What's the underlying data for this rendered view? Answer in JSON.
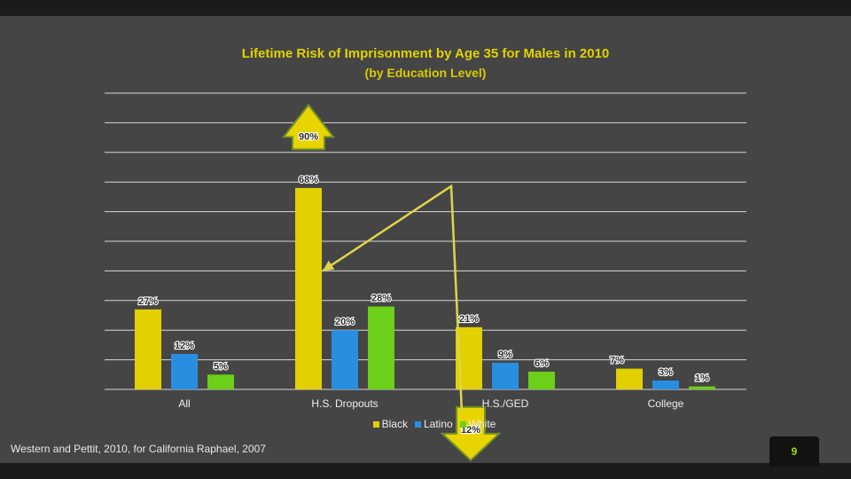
{
  "slide": {
    "title_line1": "Lifetime Risk of Imprisonment by Age 35 for Males in 2010",
    "title_line2": "(by Education Level)",
    "source": "Western and Pettit, 2010, for California Raphael, 2007",
    "page_number": "9"
  },
  "chart_data": {
    "type": "bar",
    "title": "Lifetime Risk of Imprisonment by Age 35 for Males in 2010 (by Education Level)",
    "xlabel": "",
    "ylabel": "",
    "ylim": [
      0,
      100
    ],
    "grid": true,
    "legend_position": "bottom",
    "categories": [
      "All",
      "H.S. Dropouts",
      "H.S./GED",
      "College"
    ],
    "series": [
      {
        "name": "Black",
        "color": "#e2d000",
        "values": [
          27,
          68,
          21,
          7
        ],
        "labels": [
          "27%",
          "68%",
          "21%",
          "7%"
        ]
      },
      {
        "name": "Latino",
        "color": "#2a8ee0",
        "values": [
          12,
          20,
          9,
          3
        ],
        "labels": [
          "12%",
          "20%",
          "9%",
          "3%"
        ]
      },
      {
        "name": "White",
        "color": "#6ccf18",
        "values": [
          5,
          28,
          6,
          1
        ],
        "labels": [
          "5%",
          "28%",
          "6%",
          "1%"
        ]
      }
    ],
    "annotations": [
      {
        "text": "90%",
        "kind": "up-arrow",
        "value": 90
      },
      {
        "text": "12%",
        "kind": "down-arrow",
        "value": 12
      }
    ]
  },
  "colors": {
    "background": "#454545",
    "title": "#e2d200",
    "gridline": "#d8d8d8",
    "annotation_arrow": "#e8d400",
    "pointer_line": "#e0d44a"
  }
}
